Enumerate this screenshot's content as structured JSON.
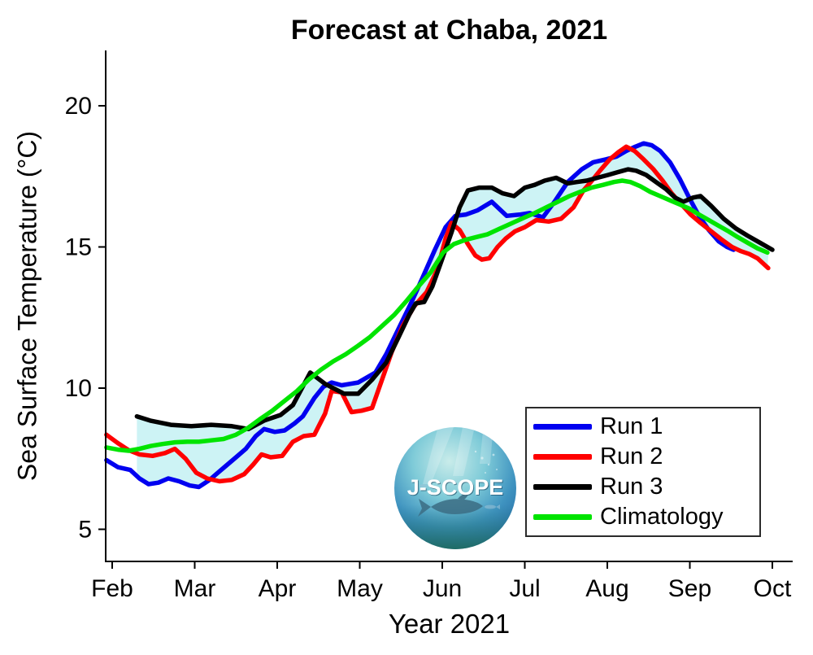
{
  "title": "Forecast at Chaba, 2021",
  "logo": {
    "text": "J-SCOPE"
  },
  "chart_data": {
    "type": "line",
    "title": "Forecast at Chaba, 2021",
    "xlabel": "Year 2021",
    "ylabel": "Sea Surface Temperature (°C)",
    "x_ticks": [
      "Feb",
      "Mar",
      "Apr",
      "May",
      "Jun",
      "Jul",
      "Aug",
      "Sep",
      "Oct"
    ],
    "x_tick_months": [
      2,
      3,
      4,
      5,
      6,
      7,
      8,
      9,
      10
    ],
    "y_ticks": [
      5,
      10,
      15,
      20
    ],
    "ylim": [
      3.9,
      22.0
    ],
    "xlim_months": [
      1.9,
      10.25
    ],
    "grid": false,
    "legend_position": "lower right",
    "band": {
      "meaning": "min-max envelope across Run 1, Run 2, Run 3",
      "color": "#cdf3f5",
      "start_month": 2.3
    },
    "x_unit": "month of 2021 (2=Feb ... 10=Oct, fractional = day within month)",
    "y_unit": "degrees C",
    "series": [
      {
        "name": "Run 1",
        "color": "#0000f0",
        "in_band": true,
        "points": [
          [
            1.93,
            7.45
          ],
          [
            2.07,
            7.2
          ],
          [
            2.22,
            7.1
          ],
          [
            2.33,
            6.8
          ],
          [
            2.44,
            6.6
          ],
          [
            2.56,
            6.65
          ],
          [
            2.68,
            6.8
          ],
          [
            2.81,
            6.7
          ],
          [
            2.94,
            6.55
          ],
          [
            3.05,
            6.5
          ],
          [
            3.18,
            6.75
          ],
          [
            3.28,
            7.0
          ],
          [
            3.38,
            7.25
          ],
          [
            3.5,
            7.55
          ],
          [
            3.62,
            7.85
          ],
          [
            3.74,
            8.3
          ],
          [
            3.84,
            8.55
          ],
          [
            3.97,
            8.45
          ],
          [
            4.09,
            8.5
          ],
          [
            4.21,
            8.75
          ],
          [
            4.31,
            9.0
          ],
          [
            4.45,
            9.65
          ],
          [
            4.56,
            10.05
          ],
          [
            4.66,
            10.2
          ],
          [
            4.78,
            10.1
          ],
          [
            4.88,
            10.15
          ],
          [
            4.98,
            10.2
          ],
          [
            5.07,
            10.35
          ],
          [
            5.19,
            10.55
          ],
          [
            5.32,
            11.2
          ],
          [
            5.47,
            12.1
          ],
          [
            5.62,
            13.0
          ],
          [
            5.76,
            13.9
          ],
          [
            5.91,
            14.9
          ],
          [
            6.04,
            15.7
          ],
          [
            6.16,
            16.1
          ],
          [
            6.29,
            16.15
          ],
          [
            6.43,
            16.3
          ],
          [
            6.6,
            16.6
          ],
          [
            6.78,
            16.1
          ],
          [
            6.95,
            16.15
          ],
          [
            7.06,
            16.2
          ],
          [
            7.22,
            16.05
          ],
          [
            7.36,
            16.6
          ],
          [
            7.52,
            17.3
          ],
          [
            7.69,
            17.75
          ],
          [
            7.83,
            18.0
          ],
          [
            7.98,
            18.1
          ],
          [
            8.11,
            18.2
          ],
          [
            8.23,
            18.4
          ],
          [
            8.34,
            18.55
          ],
          [
            8.44,
            18.67
          ],
          [
            8.54,
            18.6
          ],
          [
            8.64,
            18.4
          ],
          [
            8.76,
            18.0
          ],
          [
            8.88,
            17.4
          ],
          [
            9.0,
            16.7
          ],
          [
            9.11,
            16.1
          ],
          [
            9.23,
            15.6
          ],
          [
            9.35,
            15.2
          ],
          [
            9.45,
            15.0
          ],
          [
            9.53,
            14.9
          ]
        ]
      },
      {
        "name": "Run 2",
        "color": "#ff0000",
        "in_band": true,
        "points": [
          [
            1.93,
            8.35
          ],
          [
            2.07,
            8.05
          ],
          [
            2.2,
            7.8
          ],
          [
            2.33,
            7.65
          ],
          [
            2.49,
            7.6
          ],
          [
            2.64,
            7.7
          ],
          [
            2.76,
            7.85
          ],
          [
            2.89,
            7.5
          ],
          [
            3.02,
            7.0
          ],
          [
            3.15,
            6.8
          ],
          [
            3.3,
            6.7
          ],
          [
            3.45,
            6.75
          ],
          [
            3.6,
            6.95
          ],
          [
            3.71,
            7.3
          ],
          [
            3.81,
            7.65
          ],
          [
            3.92,
            7.55
          ],
          [
            4.06,
            7.6
          ],
          [
            4.19,
            8.1
          ],
          [
            4.32,
            8.3
          ],
          [
            4.45,
            8.35
          ],
          [
            4.58,
            9.1
          ],
          [
            4.66,
            9.9
          ],
          [
            4.78,
            9.85
          ],
          [
            4.9,
            9.15
          ],
          [
            5.02,
            9.2
          ],
          [
            5.15,
            9.3
          ],
          [
            5.27,
            10.3
          ],
          [
            5.39,
            11.3
          ],
          [
            5.52,
            12.2
          ],
          [
            5.66,
            12.9
          ],
          [
            5.81,
            13.4
          ],
          [
            5.94,
            14.2
          ],
          [
            6.04,
            15.3
          ],
          [
            6.11,
            15.85
          ],
          [
            6.21,
            15.6
          ],
          [
            6.31,
            15.1
          ],
          [
            6.4,
            14.7
          ],
          [
            6.48,
            14.55
          ],
          [
            6.57,
            14.6
          ],
          [
            6.67,
            15.0
          ],
          [
            6.77,
            15.3
          ],
          [
            6.88,
            15.55
          ],
          [
            7.0,
            15.7
          ],
          [
            7.14,
            15.95
          ],
          [
            7.29,
            15.9
          ],
          [
            7.44,
            16.0
          ],
          [
            7.59,
            16.4
          ],
          [
            7.71,
            17.0
          ],
          [
            7.8,
            17.3
          ],
          [
            7.91,
            17.7
          ],
          [
            8.03,
            18.1
          ],
          [
            8.13,
            18.35
          ],
          [
            8.23,
            18.55
          ],
          [
            8.33,
            18.4
          ],
          [
            8.44,
            18.1
          ],
          [
            8.56,
            17.75
          ],
          [
            8.67,
            17.35
          ],
          [
            8.78,
            16.9
          ],
          [
            8.9,
            16.5
          ],
          [
            9.01,
            16.15
          ],
          [
            9.13,
            15.85
          ],
          [
            9.26,
            15.55
          ],
          [
            9.39,
            15.25
          ],
          [
            9.51,
            15.0
          ],
          [
            9.62,
            14.85
          ],
          [
            9.72,
            14.75
          ],
          [
            9.82,
            14.6
          ],
          [
            9.95,
            14.25
          ]
        ]
      },
      {
        "name": "Run 3",
        "color": "#000000",
        "in_band": true,
        "points": [
          [
            2.3,
            9.0
          ],
          [
            2.46,
            8.85
          ],
          [
            2.71,
            8.7
          ],
          [
            2.96,
            8.65
          ],
          [
            3.2,
            8.7
          ],
          [
            3.45,
            8.65
          ],
          [
            3.65,
            8.55
          ],
          [
            3.84,
            8.85
          ],
          [
            4.04,
            9.05
          ],
          [
            4.19,
            9.4
          ],
          [
            4.4,
            10.55
          ],
          [
            4.58,
            10.15
          ],
          [
            4.81,
            9.8
          ],
          [
            4.98,
            9.8
          ],
          [
            5.15,
            10.3
          ],
          [
            5.32,
            10.9
          ],
          [
            5.47,
            11.8
          ],
          [
            5.6,
            12.6
          ],
          [
            5.68,
            13.0
          ],
          [
            5.78,
            13.05
          ],
          [
            5.88,
            13.6
          ],
          [
            5.99,
            14.5
          ],
          [
            6.11,
            15.5
          ],
          [
            6.21,
            16.4
          ],
          [
            6.31,
            17.0
          ],
          [
            6.45,
            17.1
          ],
          [
            6.6,
            17.1
          ],
          [
            6.73,
            16.9
          ],
          [
            6.87,
            16.8
          ],
          [
            7.0,
            17.1
          ],
          [
            7.12,
            17.2
          ],
          [
            7.24,
            17.35
          ],
          [
            7.38,
            17.45
          ],
          [
            7.52,
            17.25
          ],
          [
            7.63,
            17.3
          ],
          [
            7.75,
            17.35
          ],
          [
            7.88,
            17.45
          ],
          [
            8.01,
            17.55
          ],
          [
            8.13,
            17.65
          ],
          [
            8.25,
            17.75
          ],
          [
            8.35,
            17.7
          ],
          [
            8.47,
            17.55
          ],
          [
            8.59,
            17.3
          ],
          [
            8.71,
            17.05
          ],
          [
            8.82,
            16.75
          ],
          [
            8.92,
            16.6
          ],
          [
            9.04,
            16.75
          ],
          [
            9.13,
            16.8
          ],
          [
            9.26,
            16.45
          ],
          [
            9.41,
            16.0
          ],
          [
            9.56,
            15.65
          ],
          [
            9.7,
            15.4
          ],
          [
            9.85,
            15.15
          ],
          [
            10.0,
            14.9
          ]
        ]
      },
      {
        "name": "Climatology",
        "color": "#00e400",
        "in_band": false,
        "points": [
          [
            1.93,
            7.9
          ],
          [
            2.07,
            7.82
          ],
          [
            2.2,
            7.78
          ],
          [
            2.33,
            7.85
          ],
          [
            2.47,
            7.95
          ],
          [
            2.61,
            8.02
          ],
          [
            2.76,
            8.08
          ],
          [
            2.91,
            8.1
          ],
          [
            3.05,
            8.1
          ],
          [
            3.2,
            8.15
          ],
          [
            3.35,
            8.2
          ],
          [
            3.5,
            8.35
          ],
          [
            3.65,
            8.6
          ],
          [
            3.79,
            8.9
          ],
          [
            3.94,
            9.2
          ],
          [
            4.09,
            9.55
          ],
          [
            4.24,
            9.9
          ],
          [
            4.38,
            10.3
          ],
          [
            4.53,
            10.65
          ],
          [
            4.68,
            10.95
          ],
          [
            4.83,
            11.2
          ],
          [
            4.98,
            11.5
          ],
          [
            5.12,
            11.8
          ],
          [
            5.27,
            12.2
          ],
          [
            5.42,
            12.6
          ],
          [
            5.57,
            13.1
          ],
          [
            5.71,
            13.6
          ],
          [
            5.86,
            14.1
          ],
          [
            6.01,
            14.8
          ],
          [
            6.14,
            15.1
          ],
          [
            6.28,
            15.25
          ],
          [
            6.41,
            15.35
          ],
          [
            6.55,
            15.45
          ],
          [
            6.7,
            15.65
          ],
          [
            6.85,
            15.85
          ],
          [
            7.0,
            16.05
          ],
          [
            7.12,
            16.2
          ],
          [
            7.26,
            16.4
          ],
          [
            7.4,
            16.6
          ],
          [
            7.54,
            16.8
          ],
          [
            7.67,
            16.95
          ],
          [
            7.81,
            17.1
          ],
          [
            7.95,
            17.2
          ],
          [
            8.08,
            17.3
          ],
          [
            8.18,
            17.35
          ],
          [
            8.28,
            17.3
          ],
          [
            8.4,
            17.15
          ],
          [
            8.52,
            16.95
          ],
          [
            8.64,
            16.8
          ],
          [
            8.76,
            16.65
          ],
          [
            8.88,
            16.5
          ],
          [
            9.0,
            16.35
          ],
          [
            9.11,
            16.15
          ],
          [
            9.23,
            15.95
          ],
          [
            9.35,
            15.75
          ],
          [
            9.47,
            15.55
          ],
          [
            9.58,
            15.35
          ],
          [
            9.7,
            15.15
          ],
          [
            9.82,
            14.95
          ],
          [
            9.94,
            14.8
          ]
        ]
      }
    ]
  }
}
